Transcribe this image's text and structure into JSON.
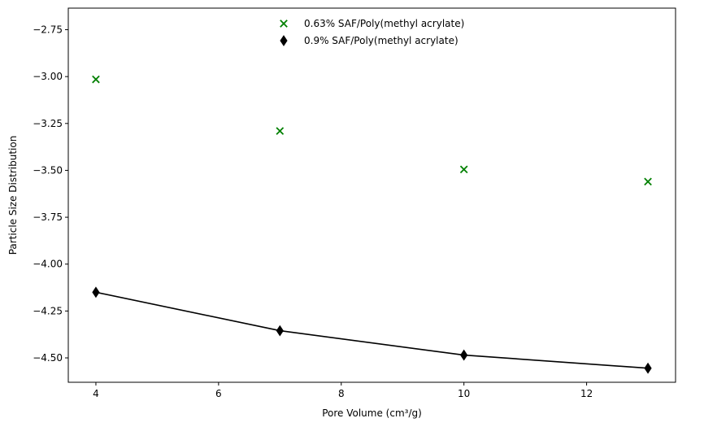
{
  "chart_data": {
    "type": "scatter",
    "title": "",
    "xlabel": "Pore Volume (cm³/g)",
    "ylabel": "Particle Size Distribution",
    "xlim": [
      3.55,
      13.45
    ],
    "ylim": [
      -4.63,
      -2.635
    ],
    "xticks": [
      4,
      6,
      8,
      10,
      12
    ],
    "yticks": [
      -2.75,
      -3.0,
      -3.25,
      -3.5,
      -3.75,
      -4.0,
      -4.25,
      -4.5
    ],
    "xtick_labels": [
      "4",
      "6",
      "8",
      "10",
      "12"
    ],
    "ytick_labels": [
      "−2.75",
      "−3.00",
      "−3.25",
      "−3.50",
      "−3.75",
      "−4.00",
      "−4.25",
      "−4.50"
    ],
    "grid": false,
    "legend_position": "top-center",
    "series": [
      {
        "name": "0.63% SAF/Poly(methyl acrylate)",
        "marker": "x",
        "color": "#008000",
        "line": false,
        "x": [
          4,
          7,
          10,
          13
        ],
        "y": [
          -3.015,
          -3.29,
          -3.495,
          -3.56
        ]
      },
      {
        "name": "0.9% SAF/Poly(methyl acrylate)",
        "marker": "thin-diamond",
        "color": "#000000",
        "line": true,
        "x": [
          4,
          7,
          10,
          13
        ],
        "y": [
          -4.15,
          -4.355,
          -4.485,
          -4.555
        ]
      }
    ]
  }
}
